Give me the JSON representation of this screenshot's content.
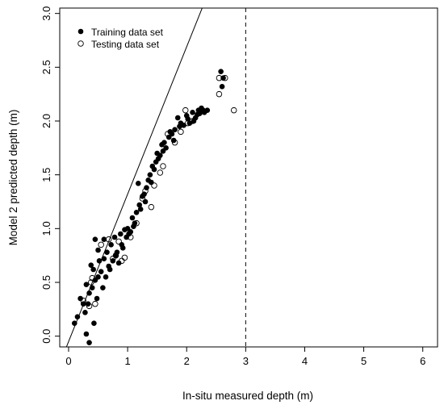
{
  "chart_data": {
    "type": "scatter",
    "xlabel": "In-situ measured depth (m)",
    "ylabel": "Model 2 predicted depth (m)",
    "xlim": [
      -0.15,
      6.25
    ],
    "ylim": [
      -0.1,
      3.05
    ],
    "x_ticks": [
      "0",
      "1",
      "2",
      "3",
      "4",
      "5",
      "6"
    ],
    "y_ticks": [
      "0.0",
      "0.5",
      "1.0",
      "1.5",
      "2.0",
      "2.5",
      "3.0"
    ],
    "grid": false,
    "legend_position": "top-left",
    "reference_line": {
      "slope": 1.37,
      "intercept": -0.05
    },
    "vertical_line": {
      "x": 3.0,
      "style": "dashed"
    },
    "series": [
      {
        "name": "Training data set",
        "marker": "filled-circle",
        "points": [
          [
            0.1,
            0.12
          ],
          [
            0.15,
            0.18
          ],
          [
            0.2,
            0.35
          ],
          [
            0.25,
            0.3
          ],
          [
            0.28,
            0.22
          ],
          [
            0.3,
            0.02
          ],
          [
            0.3,
            0.48
          ],
          [
            0.33,
            0.3
          ],
          [
            0.35,
            -0.06
          ],
          [
            0.35,
            0.4
          ],
          [
            0.38,
            0.66
          ],
          [
            0.4,
            0.45
          ],
          [
            0.42,
            0.62
          ],
          [
            0.43,
            0.12
          ],
          [
            0.45,
            0.9
          ],
          [
            0.45,
            0.52
          ],
          [
            0.48,
            0.35
          ],
          [
            0.5,
            0.55
          ],
          [
            0.5,
            0.8
          ],
          [
            0.52,
            0.7
          ],
          [
            0.55,
            0.6
          ],
          [
            0.58,
            0.45
          ],
          [
            0.6,
            0.72
          ],
          [
            0.6,
            0.9
          ],
          [
            0.63,
            0.55
          ],
          [
            0.65,
            0.78
          ],
          [
            0.68,
            0.65
          ],
          [
            0.7,
            0.62
          ],
          [
            0.72,
            0.85
          ],
          [
            0.75,
            0.7
          ],
          [
            0.78,
            0.92
          ],
          [
            0.8,
            0.75
          ],
          [
            0.82,
            0.78
          ],
          [
            0.85,
            0.68
          ],
          [
            0.88,
            0.95
          ],
          [
            0.9,
            0.85
          ],
          [
            0.92,
            0.82
          ],
          [
            0.95,
            0.99
          ],
          [
            0.98,
            0.92
          ],
          [
            1.0,
            1.0
          ],
          [
            1.02,
            0.95
          ],
          [
            1.05,
            0.97
          ],
          [
            1.08,
            1.1
          ],
          [
            1.1,
            1.02
          ],
          [
            1.12,
            1.05
          ],
          [
            1.15,
            1.15
          ],
          [
            1.18,
            1.42
          ],
          [
            1.2,
            1.22
          ],
          [
            1.22,
            1.18
          ],
          [
            1.25,
            1.3
          ],
          [
            1.28,
            1.32
          ],
          [
            1.3,
            1.25
          ],
          [
            1.32,
            1.38
          ],
          [
            1.35,
            1.45
          ],
          [
            1.38,
            1.5
          ],
          [
            1.4,
            1.43
          ],
          [
            1.42,
            1.58
          ],
          [
            1.45,
            1.55
          ],
          [
            1.48,
            1.62
          ],
          [
            1.5,
            1.7
          ],
          [
            1.52,
            1.65
          ],
          [
            1.55,
            1.68
          ],
          [
            1.58,
            1.78
          ],
          [
            1.6,
            1.72
          ],
          [
            1.62,
            1.8
          ],
          [
            1.65,
            1.75
          ],
          [
            1.7,
            1.85
          ],
          [
            1.72,
            1.9
          ],
          [
            1.75,
            1.88
          ],
          [
            1.78,
            1.82
          ],
          [
            1.8,
            1.92
          ],
          [
            1.85,
            2.03
          ],
          [
            1.88,
            1.95
          ],
          [
            1.9,
            1.98
          ],
          [
            1.95,
            1.96
          ],
          [
            2.0,
            2.05
          ],
          [
            2.02,
            2.02
          ],
          [
            2.05,
            1.98
          ],
          [
            2.1,
            2.08
          ],
          [
            2.12,
            2.0
          ],
          [
            2.15,
            2.03
          ],
          [
            2.18,
            2.06
          ],
          [
            2.2,
            2.1
          ],
          [
            2.22,
            2.07
          ],
          [
            2.25,
            2.12
          ],
          [
            2.28,
            2.1
          ],
          [
            2.3,
            2.08
          ],
          [
            2.35,
            2.1
          ],
          [
            2.58,
            2.46
          ],
          [
            2.62,
            2.4
          ],
          [
            2.6,
            2.32
          ]
        ]
      },
      {
        "name": "Testing data set",
        "marker": "open-circle",
        "points": [
          [
            0.25,
            0.33
          ],
          [
            0.35,
            0.28
          ],
          [
            0.38,
            0.5
          ],
          [
            0.4,
            0.54
          ],
          [
            0.45,
            0.3
          ],
          [
            0.55,
            0.85
          ],
          [
            0.68,
            0.9
          ],
          [
            0.75,
            0.72
          ],
          [
            0.8,
            0.75
          ],
          [
            0.85,
            0.88
          ],
          [
            0.9,
            0.7
          ],
          [
            0.95,
            0.73
          ],
          [
            1.05,
            0.92
          ],
          [
            1.15,
            1.05
          ],
          [
            1.25,
            1.28
          ],
          [
            1.3,
            1.35
          ],
          [
            1.4,
            1.2
          ],
          [
            1.45,
            1.4
          ],
          [
            1.55,
            1.52
          ],
          [
            1.6,
            1.58
          ],
          [
            1.68,
            1.88
          ],
          [
            1.8,
            1.8
          ],
          [
            1.9,
            1.9
          ],
          [
            1.98,
            2.1
          ],
          [
            2.02,
            1.98
          ],
          [
            2.1,
            2.0
          ],
          [
            2.55,
            2.25
          ],
          [
            2.55,
            2.4
          ],
          [
            2.65,
            2.4
          ],
          [
            2.8,
            2.1
          ]
        ]
      }
    ]
  }
}
